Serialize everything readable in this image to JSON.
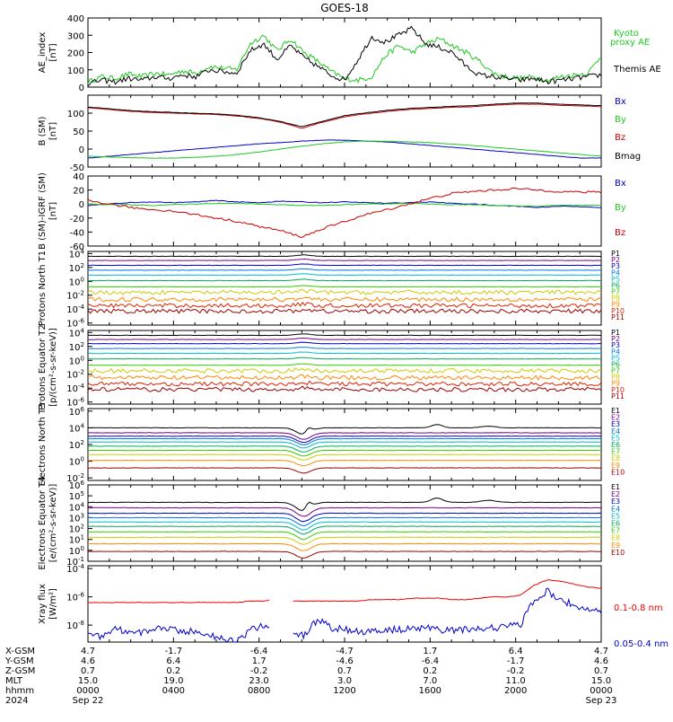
{
  "title": "GOES-18",
  "chart_data": [
    {
      "type": "line",
      "ylabel": "AE_index [nT]",
      "ylim": [
        0,
        400
      ],
      "yticks": [
        "400",
        "300",
        "200",
        "100",
        "0"
      ],
      "yscale": "linear",
      "series": [
        {
          "name": "Kyoto proxy AE",
          "color": "#1ec81e",
          "values": [
            30,
            60,
            50,
            75,
            60,
            80,
            70,
            95,
            80,
            120,
            110,
            100,
            250,
            300,
            210,
            280,
            200,
            150,
            90,
            50,
            40,
            60,
            180,
            240,
            200,
            250,
            280,
            240,
            200,
            150,
            80,
            60,
            50,
            60,
            40,
            60,
            70,
            80,
            180
          ]
        },
        {
          "name": "Themis AE",
          "color": "#000000",
          "values": [
            20,
            40,
            30,
            50,
            40,
            60,
            50,
            70,
            60,
            100,
            90,
            80,
            210,
            250,
            160,
            240,
            170,
            120,
            70,
            40,
            160,
            290,
            260,
            300,
            340,
            250,
            230,
            200,
            120,
            70,
            60,
            50,
            40,
            50,
            30,
            40,
            50,
            60,
            70
          ]
        }
      ],
      "legend": [
        "Kyoto",
        "proxy AE",
        "Themis AE"
      ]
    },
    {
      "type": "line",
      "ylabel": "B (SM) [nT]",
      "ylim": [
        -50,
        150
      ],
      "yticks": [
        "100",
        "50",
        "0",
        "-50"
      ],
      "series": [
        {
          "name": "Bx",
          "color": "#0000cc",
          "values": [
            -25,
            -20,
            -15,
            -10,
            -5,
            0,
            5,
            10,
            15,
            18,
            22,
            25,
            25,
            22,
            20,
            15,
            10,
            5,
            0,
            -5,
            -10,
            -15,
            -20,
            -25,
            -25
          ]
        },
        {
          "name": "By",
          "color": "#1ec81e",
          "values": [
            -20,
            -22,
            -24,
            -25,
            -25,
            -23,
            -20,
            -15,
            -8,
            0,
            8,
            15,
            20,
            22,
            22,
            20,
            18,
            14,
            10,
            5,
            0,
            -5,
            -10,
            -15,
            -20
          ]
        },
        {
          "name": "Bz",
          "color": "#cc0000",
          "values": [
            115,
            110,
            105,
            102,
            100,
            98,
            96,
            92,
            85,
            75,
            58,
            75,
            90,
            98,
            105,
            110,
            113,
            116,
            118,
            122,
            125,
            125,
            122,
            120,
            118
          ]
        },
        {
          "name": "Bmag",
          "color": "#000000",
          "values": [
            117,
            112,
            107,
            104,
            102,
            100,
            98,
            94,
            87,
            77,
            62,
            78,
            93,
            101,
            108,
            113,
            116,
            119,
            121,
            125,
            128,
            128,
            125,
            123,
            121
          ]
        }
      ]
    },
    {
      "type": "line",
      "ylabel": "B (SM)-IGRF (SM) [nT]",
      "ylim": [
        -60,
        40
      ],
      "yticks": [
        "40",
        "20",
        "0",
        "-20",
        "-40",
        "-60"
      ],
      "series": [
        {
          "name": "Bx",
          "color": "#0000cc",
          "values": [
            -2,
            0,
            2,
            3,
            2,
            3,
            5,
            3,
            2,
            4,
            3,
            2,
            3,
            2,
            1,
            2,
            3,
            1,
            0,
            -2,
            -3,
            -5,
            -3,
            -4,
            -5
          ]
        },
        {
          "name": "By",
          "color": "#1ec81e",
          "values": [
            0,
            -1,
            -1,
            -2,
            -1,
            0,
            1,
            1,
            0,
            -1,
            -2,
            -2,
            -1,
            0,
            0,
            1,
            0,
            -1,
            -1,
            -2,
            -3,
            -3,
            -2,
            -2,
            -2
          ]
        },
        {
          "name": "Bz",
          "color": "#cc0000",
          "values": [
            5,
            0,
            -5,
            -8,
            -10,
            -15,
            -20,
            -25,
            -32,
            -38,
            -47,
            -35,
            -25,
            -15,
            -8,
            0,
            8,
            15,
            18,
            20,
            22,
            20,
            18,
            17,
            17
          ]
        }
      ]
    },
    {
      "type": "line",
      "ylabel": "Protons North T1",
      "yscale": "log",
      "yticks": [
        "10^4",
        "10^2",
        "10^0",
        "10^-2",
        "10^-4",
        "10^-6"
      ],
      "series_labels": [
        "P1",
        "P2",
        "P3",
        "P4",
        "P5",
        "P6",
        "P7",
        "P8",
        "P9",
        "P10",
        "P11"
      ],
      "series_colors": [
        "#000000",
        "#770088",
        "#0000cc",
        "#0077dd",
        "#00bbcc",
        "#00aa55",
        "#33cc00",
        "#cccc00",
        "#ff8800",
        "#dd2200",
        "#990000"
      ],
      "levels_log10": [
        3.6,
        3.0,
        2.3,
        1.6,
        0.9,
        0.1,
        -0.8,
        -1.6,
        -2.6,
        -3.5,
        -4.3
      ]
    },
    {
      "type": "line",
      "ylabel": "Protons Equator T2 [p/(cm²-s-sr-keV)]",
      "yscale": "log",
      "yticks": [
        "10^4",
        "10^2",
        "10^0",
        "10^-2",
        "10^-4",
        "10^-6"
      ],
      "series_labels": [
        "P1",
        "P2",
        "P3",
        "P4",
        "P5",
        "P6",
        "P7",
        "P8",
        "P9",
        "P10",
        "P11"
      ],
      "series_colors": [
        "#000000",
        "#770088",
        "#0000cc",
        "#0077dd",
        "#00bbcc",
        "#00aa55",
        "#33cc00",
        "#cccc00",
        "#ff8800",
        "#dd2200",
        "#990000"
      ],
      "levels_log10": [
        3.6,
        3.0,
        2.4,
        1.7,
        1.0,
        0.2,
        -0.7,
        -1.5,
        -2.5,
        -3.4,
        -4.2
      ]
    },
    {
      "type": "line",
      "ylabel": "Electrons North T3",
      "yscale": "log",
      "yticks": [
        "10^6",
        "10^4",
        "10^2",
        "10^0",
        "10^-2"
      ],
      "series_labels": [
        "E1",
        "E2",
        "E3",
        "E4",
        "E5",
        "E6",
        "E7",
        "E8",
        "E9",
        "E10"
      ],
      "series_colors": [
        "#000000",
        "#770088",
        "#0000cc",
        "#0077dd",
        "#00bbcc",
        "#00aa55",
        "#33cc00",
        "#cccc00",
        "#ff8800",
        "#990000"
      ],
      "levels_log10": [
        4.0,
        3.4,
        3.0,
        2.7,
        2.3,
        1.8,
        1.3,
        0.8,
        0.1,
        -0.8
      ]
    },
    {
      "type": "line",
      "ylabel": "Electrons Equator T4 [e/(cm²-s-sr-keV)]",
      "yscale": "log",
      "yticks": [
        "10^6",
        "10^5",
        "10^4",
        "10^3",
        "10^2",
        "10^1",
        "10^0",
        "10^-1"
      ],
      "series_labels": [
        "E1",
        "E2",
        "E3",
        "E4",
        "E5",
        "E6",
        "E7",
        "E8",
        "E9",
        "E10"
      ],
      "series_colors": [
        "#000000",
        "#770088",
        "#0000cc",
        "#0077dd",
        "#00bbcc",
        "#00aa55",
        "#33cc00",
        "#cccc00",
        "#ff8800",
        "#990000"
      ],
      "levels_log10": [
        4.4,
        3.9,
        3.4,
        3.0,
        2.6,
        2.2,
        1.7,
        1.2,
        0.6,
        -0.1
      ]
    },
    {
      "type": "line",
      "ylabel": "Xray flux [W/m²]",
      "yscale": "log",
      "yticks": [
        "10^-4",
        "10^-6",
        "10^-8"
      ],
      "series": [
        {
          "name": "0.1-0.8 nm",
          "color": "#ee0000",
          "values_log10": [
            -6.4,
            -6.4,
            -6.4,
            -6.4,
            -6.4,
            -6.4,
            -6.4,
            -6.4,
            -6.4,
            -6.4,
            -6.4,
            -6.4,
            -6.3,
            -6.3,
            -6.1,
            -6.3,
            -6.3,
            -6.3,
            -6.3,
            -6.3,
            -6.3,
            -6.2,
            -6.2,
            -6.2,
            -6.1,
            -6.1,
            -6.1,
            -6.2,
            -6.2,
            -6.1,
            -6.0,
            -6.0,
            -5.9,
            -5.2,
            -4.8,
            -4.9,
            -5.1,
            -5.3,
            -5.4
          ]
        },
        {
          "name": "0.05-0.4 nm",
          "color": "#0000cc",
          "values_log10": [
            -8.5,
            -8.8,
            -8.3,
            -8.4,
            -8.6,
            -8.2,
            -8.3,
            -8.5,
            -8.4,
            -8.7,
            -9.0,
            -9.2,
            -8.4,
            -8.0,
            -8.3,
            -8.6,
            -8.7,
            -7.6,
            -8.2,
            -8.3,
            -8.5,
            -8.4,
            -8.4,
            -8.3,
            -8.3,
            -8.2,
            -8.3,
            -8.4,
            -8.3,
            -8.2,
            -8.2,
            -8.1,
            -8.0,
            -6.3,
            -5.6,
            -6.2,
            -6.6,
            -6.9,
            -7.0
          ]
        }
      ]
    }
  ],
  "x_axis": {
    "rows": [
      {
        "label": "X-GSM",
        "values": [
          "4.7",
          "-1.7",
          "-6.4",
          "-4.7",
          "1.7",
          "6.4",
          "4.7"
        ]
      },
      {
        "label": "Y-GSM",
        "values": [
          "4.6",
          "6.4",
          "1.7",
          "-4.6",
          "-6.4",
          "-1.7",
          "4.6"
        ]
      },
      {
        "label": "Z-GSM",
        "values": [
          "0.7",
          "0.2",
          "-0.2",
          "0.7",
          "0.2",
          "-0.2",
          "0.7"
        ]
      },
      {
        "label": "MLT",
        "values": [
          "15.0",
          "19.0",
          "23.0",
          "3.0",
          "7.0",
          "11.0",
          "15.0"
        ]
      },
      {
        "label": "hhmm",
        "values": [
          "0000",
          "0400",
          "0800",
          "1200",
          "1600",
          "2000",
          "0000"
        ]
      },
      {
        "label": "2024",
        "values": [
          "Sep 22",
          "",
          "",
          "",
          "",
          "",
          "Sep 23"
        ]
      }
    ]
  }
}
